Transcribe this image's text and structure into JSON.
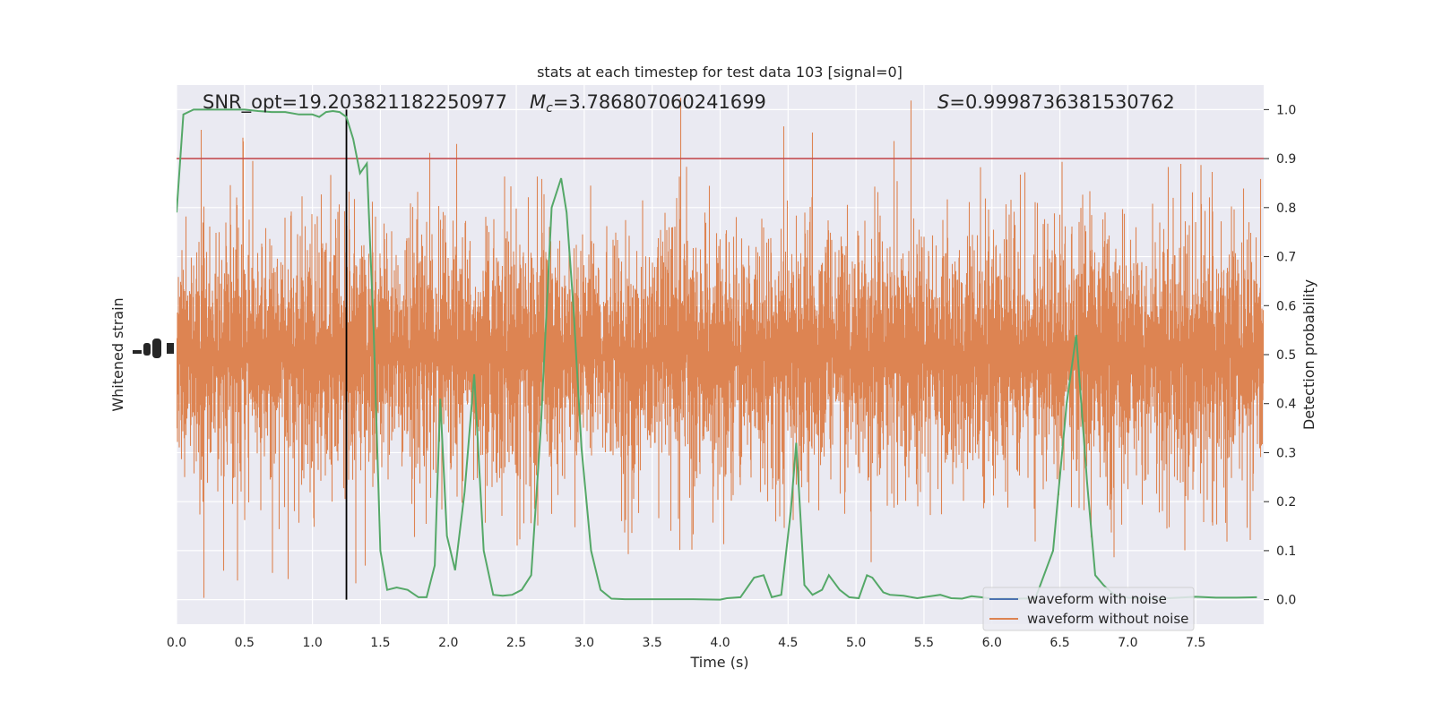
{
  "chart_data": {
    "type": "line",
    "title": "stats at each timestep for test data 103 [signal=0]",
    "annotations": {
      "snr": "SNR_opt=19.203821182250977",
      "mc_symbol": "M",
      "mc_sub": "c",
      "mc_value": "=3.786807060241699",
      "s_symbol": "S",
      "s_value": "=0.9998736381530762"
    },
    "xlabel": "Time (s)",
    "ylabel_left": "Whitened strain",
    "ylabel_right": "Detection probability",
    "xlim": [
      0.0,
      8.0
    ],
    "ylim_right": [
      -0.05,
      1.05
    ],
    "x_ticks": [
      "0.0",
      "0.5",
      "1.0",
      "1.5",
      "2.0",
      "2.5",
      "3.0",
      "3.5",
      "4.0",
      "4.5",
      "5.0",
      "5.5",
      "6.0",
      "6.5",
      "7.0",
      "7.5"
    ],
    "y_ticks_right": [
      "0.0",
      "0.1",
      "0.2",
      "0.3",
      "0.4",
      "0.5",
      "0.6",
      "0.7",
      "0.8",
      "0.9",
      "1.0"
    ],
    "threshold": 0.9,
    "marker_time": 1.25,
    "grid": true,
    "legend_placement": "lower-right",
    "legend": [
      {
        "name": "waveform with noise",
        "color": "#4c72b0"
      },
      {
        "name": "waveform without noise",
        "color": "#dd8452"
      }
    ],
    "colors": {
      "noise": "#dd8452",
      "probability": "#55a868",
      "threshold": "#c44e52",
      "marker": "#000000",
      "axes_bg": "#eaeaf2"
    },
    "probability": {
      "t": [
        0.0,
        0.05,
        0.125,
        0.2,
        0.3,
        0.4,
        0.5,
        0.6,
        0.7,
        0.8,
        0.9,
        1.0,
        1.05,
        1.1,
        1.15,
        1.2,
        1.25,
        1.3,
        1.35,
        1.4,
        1.45,
        1.5,
        1.55,
        1.62,
        1.7,
        1.78,
        1.84,
        1.9,
        1.94,
        1.99,
        2.05,
        2.12,
        2.19,
        2.26,
        2.33,
        2.4,
        2.47,
        2.54,
        2.61,
        2.68,
        2.76,
        2.83,
        2.87,
        2.92,
        2.98,
        3.05,
        3.12,
        3.2,
        3.3,
        3.5,
        3.8,
        4.0,
        4.05,
        4.15,
        4.25,
        4.32,
        4.38,
        4.45,
        4.52,
        4.56,
        4.62,
        4.68,
        4.75,
        4.8,
        4.88,
        4.95,
        5.02,
        5.08,
        5.12,
        5.2,
        5.25,
        5.35,
        5.45,
        5.52,
        5.62,
        5.7,
        5.78,
        5.85,
        5.92,
        6.0,
        6.1,
        6.2,
        6.32,
        6.45,
        6.55,
        6.62,
        6.7,
        6.76,
        6.82,
        6.9,
        7.0,
        7.15,
        7.3,
        7.5,
        7.65,
        7.8,
        7.95
      ],
      "p": [
        0.79,
        0.99,
        1.0,
        1.0,
        1.0,
        1.0,
        1.0,
        0.997,
        0.995,
        0.995,
        0.99,
        0.99,
        0.985,
        0.995,
        0.997,
        0.995,
        0.985,
        0.94,
        0.87,
        0.89,
        0.55,
        0.1,
        0.02,
        0.025,
        0.02,
        0.005,
        0.005,
        0.07,
        0.41,
        0.13,
        0.06,
        0.22,
        0.46,
        0.1,
        0.01,
        0.008,
        0.01,
        0.02,
        0.05,
        0.35,
        0.8,
        0.86,
        0.79,
        0.6,
        0.31,
        0.1,
        0.02,
        0.002,
        0.001,
        0.001,
        0.001,
        0.0,
        0.003,
        0.005,
        0.045,
        0.05,
        0.005,
        0.01,
        0.18,
        0.32,
        0.03,
        0.01,
        0.02,
        0.05,
        0.02,
        0.005,
        0.003,
        0.05,
        0.045,
        0.015,
        0.01,
        0.008,
        0.003,
        0.006,
        0.01,
        0.003,
        0.002,
        0.007,
        0.005,
        0.002,
        0.003,
        0.002,
        0.003,
        0.1,
        0.4,
        0.54,
        0.24,
        0.05,
        0.03,
        0.01,
        0.004,
        0.002,
        0.003,
        0.006,
        0.004,
        0.004,
        0.005
      ]
    }
  }
}
